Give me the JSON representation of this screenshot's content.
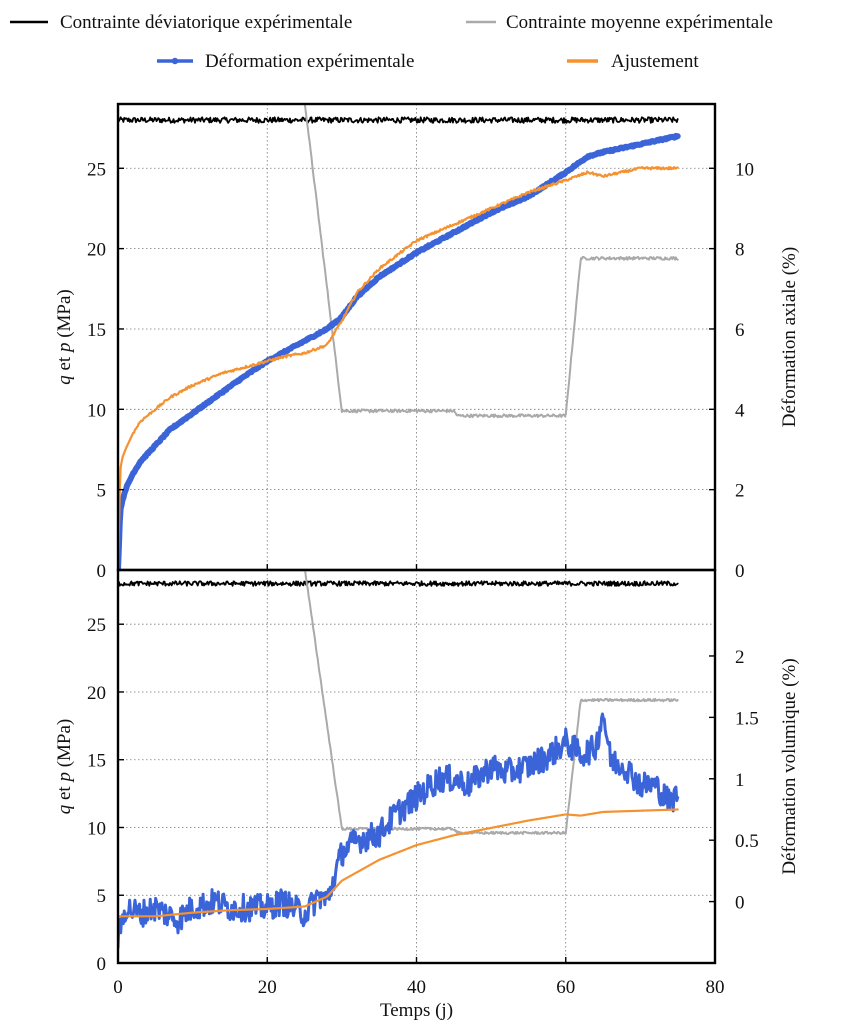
{
  "legend": [
    {
      "label": "Contrainte déviatorique expérimentale",
      "color": "#000000"
    },
    {
      "label": "Contrainte moyenne expérimentale",
      "color": "#aaaaaa"
    },
    {
      "label": "Déformation expérimentale",
      "color": "#3a64d8"
    },
    {
      "label": "Ajustement",
      "color": "#f5922f"
    }
  ],
  "chart_data": [
    {
      "type": "line",
      "xlabel": "Temps (j)",
      "ylabel": "q et p (MPa)",
      "ylabel_right": "Déformation axiale (%)",
      "xlim": [
        0,
        80
      ],
      "ylim": [
        0,
        29
      ],
      "ylim_right": [
        0,
        11.6
      ],
      "xticks": [
        0,
        20,
        40,
        60,
        80
      ],
      "yticks": [
        0,
        5,
        10,
        15,
        20,
        25
      ],
      "yticks_right": [
        0,
        2,
        4,
        6,
        8,
        10
      ],
      "grid": true,
      "series": [
        {
          "name": "Contrainte déviatorique expérimentale",
          "axis": "left",
          "color": "#000000",
          "x": [
            0,
            75
          ],
          "y": [
            28,
            28
          ]
        },
        {
          "name": "Contrainte moyenne expérimentale",
          "axis": "left",
          "color": "#aaaaaa",
          "x": [
            0,
            24.8,
            25,
            30,
            45,
            45.5,
            60,
            62,
            75
          ],
          "y": [
            29.3,
            29.3,
            29.2,
            9.9,
            9.9,
            9.6,
            9.6,
            19.4,
            19.4
          ]
        },
        {
          "name": "Déformation expérimentale",
          "axis": "right",
          "color": "#3a64d8",
          "x": [
            0,
            0.3,
            0.7,
            1,
            2,
            3,
            5,
            7,
            10,
            13,
            16,
            20,
            25,
            28,
            30,
            32,
            35,
            40,
            45,
            50,
            55,
            60,
            63,
            65,
            70,
            75
          ],
          "y": [
            0,
            1.5,
            1.8,
            2.0,
            2.4,
            2.7,
            3.1,
            3.5,
            3.9,
            4.3,
            4.7,
            5.2,
            5.7,
            6.0,
            6.3,
            6.8,
            7.3,
            7.9,
            8.4,
            8.9,
            9.3,
            9.9,
            10.3,
            10.4,
            10.6,
            10.8
          ]
        },
        {
          "name": "Ajustement",
          "axis": "right",
          "color": "#f5922f",
          "x": [
            0,
            0.3,
            0.6,
            1,
            2,
            3,
            5,
            7,
            10,
            14,
            18,
            22,
            25,
            28,
            30,
            32,
            35,
            40,
            45,
            50,
            55,
            60,
            63,
            65,
            70,
            75
          ],
          "y": [
            0,
            2.5,
            2.8,
            3.0,
            3.4,
            3.7,
            4.0,
            4.3,
            4.6,
            4.9,
            5.1,
            5.3,
            5.4,
            5.6,
            6.2,
            6.9,
            7.5,
            8.2,
            8.6,
            9.0,
            9.4,
            9.7,
            9.9,
            9.8,
            10.0,
            10.0
          ]
        }
      ]
    },
    {
      "type": "line",
      "xlabel": "Temps (j)",
      "ylabel": "q et p (MPa)",
      "ylabel_right": "Déformation volumique (%)",
      "xlim": [
        0,
        80
      ],
      "ylim": [
        0,
        29
      ],
      "ylim_right": [
        -0.5,
        2.7
      ],
      "xticks": [
        0,
        20,
        40,
        60,
        80
      ],
      "yticks": [
        0,
        5,
        10,
        15,
        20,
        25
      ],
      "yticks_right": [
        0,
        0.5,
        1,
        1.5,
        2
      ],
      "grid": true,
      "series": [
        {
          "name": "Contrainte déviatorique expérimentale",
          "axis": "left",
          "color": "#000000",
          "x": [
            0,
            75
          ],
          "y": [
            28,
            28
          ]
        },
        {
          "name": "Contrainte moyenne expérimentale",
          "axis": "left",
          "color": "#aaaaaa",
          "x": [
            0,
            24.8,
            25,
            30,
            45,
            45.5,
            60,
            62,
            75
          ],
          "y": [
            29.3,
            29.3,
            29.2,
            9.9,
            9.9,
            9.6,
            9.6,
            19.4,
            19.4
          ]
        },
        {
          "name": "Déformation expérimentale",
          "axis": "right",
          "color": "#3a64d8",
          "x": [
            0,
            1,
            3,
            5,
            8,
            10,
            13,
            15,
            18,
            20,
            22,
            25,
            27,
            28,
            30,
            32,
            35,
            37,
            40,
            43,
            45,
            47,
            50,
            52,
            55,
            58,
            60,
            62,
            64,
            65,
            66,
            68,
            70,
            72,
            74,
            75
          ],
          "y": [
            -0.3,
            -0.05,
            -0.1,
            -0.05,
            -0.15,
            -0.05,
            0.0,
            -0.05,
            -0.05,
            -0.05,
            0.0,
            -0.1,
            0.05,
            0.0,
            0.4,
            0.5,
            0.55,
            0.7,
            0.85,
            1.0,
            1.0,
            0.95,
            1.1,
            1.05,
            1.1,
            1.2,
            1.3,
            1.2,
            1.25,
            1.55,
            1.15,
            1.1,
            0.95,
            0.95,
            0.8,
            0.9
          ]
        },
        {
          "name": "Ajustement",
          "axis": "right",
          "color": "#f5922f",
          "x": [
            0,
            5,
            10,
            15,
            20,
            25,
            28,
            30,
            35,
            40,
            45,
            50,
            55,
            60,
            62,
            65,
            70,
            75
          ],
          "y": [
            -0.12,
            -0.12,
            -0.09,
            -0.07,
            -0.06,
            -0.04,
            0.04,
            0.17,
            0.34,
            0.46,
            0.54,
            0.6,
            0.66,
            0.71,
            0.7,
            0.73,
            0.74,
            0.75
          ]
        }
      ]
    }
  ]
}
